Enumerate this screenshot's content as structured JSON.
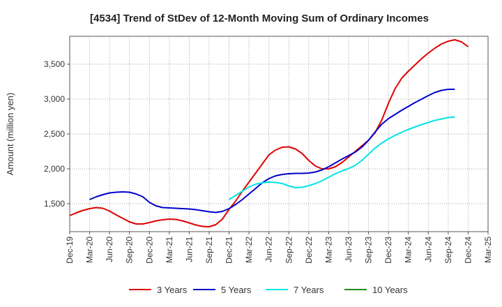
{
  "chart_data": {
    "type": "line",
    "title": "[4534]  Trend of StDev of 12-Month Moving Sum of Ordinary Incomes",
    "xlabel": "",
    "ylabel": "Amount (million yen)",
    "ylim": [
      1100,
      3900
    ],
    "yticks": [
      1500,
      2000,
      2500,
      3000,
      3500
    ],
    "ytick_labels": [
      "1,500",
      "2,000",
      "2,500",
      "3,000",
      "3,500"
    ],
    "x_start": "Dec-19",
    "x_months_total": 63,
    "xtick_labels": [
      "Dec-19",
      "Mar-20",
      "Jun-20",
      "Sep-20",
      "Dec-20",
      "Mar-21",
      "Jun-21",
      "Sep-21",
      "Dec-21",
      "Mar-22",
      "Jun-22",
      "Sep-22",
      "Dec-22",
      "Mar-23",
      "Jun-23",
      "Sep-23",
      "Dec-23",
      "Mar-24",
      "Jun-24",
      "Sep-24",
      "Dec-24",
      "Mar-25"
    ],
    "grid": true,
    "legend_position": "bottom",
    "series": [
      {
        "name": "3 Years",
        "color": "#dd0000",
        "start_index": 0,
        "values": [
          1330,
          1370,
          1405,
          1430,
          1445,
          1435,
          1395,
          1340,
          1290,
          1240,
          1210,
          1210,
          1230,
          1255,
          1270,
          1280,
          1275,
          1255,
          1225,
          1195,
          1175,
          1170,
          1200,
          1280,
          1420,
          1540,
          1680,
          1810,
          1940,
          2070,
          2200,
          2270,
          2310,
          2315,
          2285,
          2220,
          2120,
          2040,
          2000,
          2000,
          2030,
          2090,
          2170,
          2250,
          2330,
          2410,
          2520,
          2700,
          2940,
          3150,
          3300,
          3400,
          3490,
          3580,
          3660,
          3730,
          3790,
          3830,
          3850,
          3820,
          3750
        ]
      },
      {
        "name": "5 Years",
        "color": "#0000cc",
        "start_index": 3,
        "values": [
          1560,
          1600,
          1630,
          1655,
          1665,
          1670,
          1665,
          1640,
          1600,
          1520,
          1470,
          1445,
          1440,
          1435,
          1430,
          1425,
          1415,
          1400,
          1385,
          1375,
          1390,
          1430,
          1490,
          1560,
          1640,
          1720,
          1800,
          1860,
          1900,
          1920,
          1930,
          1935,
          1935,
          1940,
          1955,
          1985,
          2030,
          2085,
          2140,
          2190,
          2240,
          2310,
          2410,
          2530,
          2640,
          2720,
          2780,
          2840,
          2895,
          2950,
          3000,
          3050,
          3095,
          3125,
          3140,
          3140
        ]
      },
      {
        "name": "7 Years",
        "color": "#00e5e5",
        "start_index": 24,
        "values": [
          1560,
          1620,
          1680,
          1740,
          1780,
          1800,
          1810,
          1805,
          1790,
          1755,
          1730,
          1735,
          1760,
          1790,
          1830,
          1880,
          1930,
          1970,
          2005,
          2050,
          2120,
          2210,
          2300,
          2370,
          2430,
          2480,
          2525,
          2565,
          2600,
          2635,
          2665,
          2695,
          2715,
          2735,
          2745
        ]
      },
      {
        "name": "10 Years",
        "color": "#228b22",
        "start_index": 0,
        "values": []
      }
    ]
  }
}
